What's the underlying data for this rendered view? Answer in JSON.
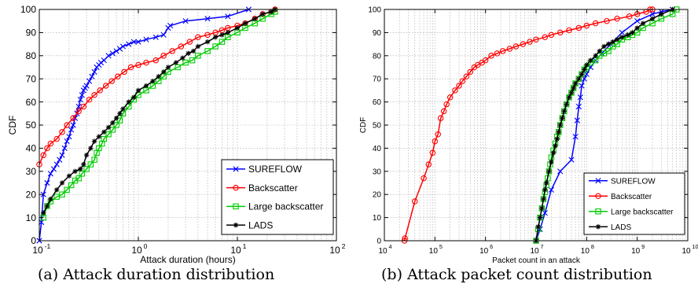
{
  "captions": {
    "a": "(a) Attack duration distribution",
    "b": "(b) Attack packet count distribution"
  },
  "chart_data": [
    {
      "type": "line",
      "xscale": "log",
      "xlim": [
        0.1,
        100
      ],
      "ylim": [
        0,
        100
      ],
      "xlabel": "Attack duration (hours)",
      "ylabel": "CDF",
      "grid": true,
      "legend_position": "bottom-right",
      "x_ticks": [
        {
          "value": 0.1,
          "base": "10",
          "exp": "-1"
        },
        {
          "value": 1,
          "base": "10",
          "exp": "0"
        },
        {
          "value": 10,
          "base": "10",
          "exp": "1"
        },
        {
          "value": 100,
          "base": "10",
          "exp": "2"
        }
      ],
      "y_ticks": [
        "0",
        "10",
        "20",
        "30",
        "40",
        "50",
        "60",
        "70",
        "80",
        "90",
        "100"
      ],
      "series": [
        {
          "name": "SUREFLOW",
          "color": "#0000ff",
          "marker": "x",
          "x": [
            0.1,
            0.105,
            0.11,
            0.12,
            0.13,
            0.14,
            0.15,
            0.16,
            0.17,
            0.18,
            0.19,
            0.2,
            0.21,
            0.22,
            0.23,
            0.24,
            0.25,
            0.26,
            0.27,
            0.28,
            0.29,
            0.3,
            0.32,
            0.34,
            0.36,
            0.38,
            0.4,
            0.42,
            0.45,
            0.5,
            0.55,
            0.6,
            0.65,
            0.7,
            0.8,
            0.9,
            1.0,
            1.2,
            1.5,
            1.8,
            2.0,
            2.1,
            3.0,
            5.0,
            8.0,
            13.0
          ],
          "y": [
            0,
            8,
            20,
            25,
            29,
            31,
            33,
            35,
            37,
            40,
            43,
            45,
            48,
            50,
            53,
            55,
            58,
            61,
            63,
            65,
            66,
            67,
            69,
            71,
            73,
            75,
            76,
            77,
            78,
            80,
            81,
            82,
            83,
            84,
            85,
            86,
            86,
            87,
            88,
            89,
            92,
            93,
            95,
            96,
            97,
            100
          ]
        },
        {
          "name": "Backscatter",
          "color": "#ff0000",
          "marker": "o",
          "x": [
            0.1,
            0.11,
            0.12,
            0.13,
            0.15,
            0.17,
            0.19,
            0.22,
            0.25,
            0.28,
            0.32,
            0.36,
            0.41,
            0.47,
            0.54,
            0.62,
            0.72,
            0.84,
            1.0,
            1.2,
            1.5,
            1.8,
            2.2,
            2.7,
            3.3,
            4.0,
            5.0,
            6.0,
            7.0,
            8.0,
            10.0,
            12.0,
            15.0,
            18.0,
            22.0,
            24.0
          ],
          "y": [
            33,
            37,
            40,
            42,
            44,
            47,
            50,
            53,
            56,
            58,
            61,
            63,
            65,
            67,
            69,
            71,
            73,
            75,
            76,
            77,
            78,
            80,
            82,
            84,
            86,
            88,
            89,
            90,
            91,
            92,
            93,
            94,
            96,
            98,
            99,
            100
          ]
        },
        {
          "name": "Large backscatter",
          "color": "#00cc00",
          "marker": "s",
          "x": [
            0.11,
            0.12,
            0.13,
            0.15,
            0.17,
            0.19,
            0.21,
            0.23,
            0.25,
            0.27,
            0.3,
            0.33,
            0.36,
            0.38,
            0.4,
            0.43,
            0.45,
            0.5,
            0.55,
            0.6,
            0.65,
            0.7,
            0.8,
            0.9,
            1.0,
            1.2,
            1.4,
            1.6,
            1.8,
            2.0,
            2.5,
            3.0,
            3.5,
            4.0,
            5.0,
            6.0,
            7.0,
            8.0,
            10.0,
            12.0,
            15.0,
            18.0,
            22.0,
            24.0
          ],
          "y": [
            10,
            15,
            17,
            19,
            20,
            22,
            24,
            26,
            27,
            29,
            31,
            33,
            35,
            38,
            40,
            42,
            44,
            46,
            48,
            50,
            52,
            55,
            58,
            61,
            63,
            65,
            67,
            69,
            71,
            73,
            75,
            77,
            78,
            80,
            82,
            84,
            86,
            88,
            90,
            92,
            94,
            96,
            98,
            99
          ]
        },
        {
          "name": "LADS",
          "color": "#000000",
          "marker": "*",
          "x": [
            0.11,
            0.12,
            0.13,
            0.15,
            0.17,
            0.2,
            0.23,
            0.26,
            0.28,
            0.3,
            0.33,
            0.36,
            0.4,
            0.45,
            0.5,
            0.55,
            0.6,
            0.65,
            0.7,
            0.8,
            0.9,
            1.0,
            1.2,
            1.4,
            1.6,
            1.8,
            2.0,
            2.4,
            2.8,
            3.2,
            3.6,
            4.0,
            5.0,
            6.0,
            7.0,
            8.0,
            10.0,
            12.0,
            15.0,
            18.0,
            22.0,
            24.0
          ],
          "y": [
            12,
            15,
            18,
            22,
            25,
            28,
            30,
            31,
            33,
            37,
            40,
            43,
            45,
            47,
            49,
            51,
            53,
            55,
            57,
            60,
            62,
            65,
            67,
            69,
            71,
            73,
            75,
            77,
            79,
            81,
            82,
            84,
            86,
            88,
            89,
            90,
            92,
            94,
            96,
            98,
            99,
            100
          ]
        }
      ]
    },
    {
      "type": "line",
      "xscale": "log",
      "xlim": [
        10000,
        10000000000
      ],
      "ylim": [
        0,
        100
      ],
      "xlabel": "Packet count in an attack",
      "ylabel": "CDF",
      "grid": true,
      "legend_position": "bottom-right",
      "x_ticks": [
        {
          "value": 10000,
          "base": "10",
          "exp": "4"
        },
        {
          "value": 100000,
          "base": "10",
          "exp": "5"
        },
        {
          "value": 1000000,
          "base": "10",
          "exp": "6"
        },
        {
          "value": 10000000,
          "base": "10",
          "exp": "7"
        },
        {
          "value": 100000000,
          "base": "10",
          "exp": "8"
        },
        {
          "value": 1000000000,
          "base": "10",
          "exp": "9"
        },
        {
          "value": 10000000000,
          "base": "10",
          "exp": "10"
        }
      ],
      "y_ticks": [
        "0",
        "10",
        "20",
        "30",
        "40",
        "50",
        "60",
        "70",
        "80",
        "90",
        "100"
      ],
      "series": [
        {
          "name": "SUREFLOW",
          "color": "#0000ff",
          "marker": "x",
          "x": [
            10000000,
            12000000,
            15000000,
            20000000,
            30000000,
            50000000,
            60000000,
            65000000,
            70000000,
            75000000,
            80000000,
            90000000,
            100000000,
            120000000,
            150000000,
            200000000,
            300000000,
            500000000,
            1000000000,
            2000000000,
            3000000000,
            5000000000
          ],
          "y": [
            0,
            5,
            12,
            22,
            30,
            35,
            45,
            52,
            58,
            62,
            67,
            70,
            72,
            75,
            78,
            81,
            85,
            90,
            95,
            98,
            99,
            100
          ]
        },
        {
          "name": "Backscatter",
          "color": "#ff0000",
          "marker": "o",
          "x": [
            25000,
            25500,
            40000,
            60000,
            75000,
            90000,
            100000,
            115000,
            130000,
            150000,
            170000,
            200000,
            250000,
            300000,
            350000,
            420000,
            500000,
            600000,
            700000,
            850000,
            1000000,
            1300000,
            1700000,
            2200000,
            3000000,
            4000000,
            5500000,
            7500000,
            10000000,
            15000000,
            20000000,
            30000000,
            45000000,
            70000000,
            100000000,
            150000000,
            250000000,
            400000000,
            700000000,
            1000000000,
            1500000000,
            1800000000,
            2000000000
          ],
          "y": [
            0,
            1,
            17,
            27,
            33,
            38,
            43,
            46,
            53,
            56,
            59,
            62,
            65,
            67,
            69,
            71,
            73,
            75,
            76,
            77,
            78,
            80,
            81,
            82,
            83,
            84,
            85,
            86,
            87,
            88,
            89,
            90,
            91,
            92,
            93,
            94,
            95,
            96,
            97,
            98,
            99,
            100,
            100
          ]
        },
        {
          "name": "Large backscatter",
          "color": "#00cc00",
          "marker": "s",
          "x": [
            10000000,
            11000000,
            12000000,
            13000000,
            14000000,
            15000000,
            16000000,
            17000000,
            18000000,
            19000000,
            20000000,
            22000000,
            24000000,
            26000000,
            28000000,
            30000000,
            33000000,
            36000000,
            40000000,
            45000000,
            50000000,
            55000000,
            60000000,
            70000000,
            80000000,
            90000000,
            100000000,
            120000000,
            150000000,
            180000000,
            220000000,
            270000000,
            330000000,
            400000000,
            500000000,
            650000000,
            800000000,
            1000000000,
            1300000000,
            2000000000,
            3000000000,
            5000000000,
            6000000000
          ],
          "y": [
            0,
            5,
            10,
            14,
            18,
            21,
            24,
            27,
            30,
            33,
            36,
            39,
            42,
            45,
            47,
            50,
            53,
            56,
            59,
            62,
            64,
            66,
            68,
            70,
            72,
            74,
            75,
            77,
            78,
            80,
            81,
            82,
            84,
            85,
            87,
            88,
            89,
            90,
            92,
            94,
            96,
            98,
            100
          ]
        },
        {
          "name": "LADS",
          "color": "#000000",
          "marker": "*",
          "x": [
            10000000,
            11000000,
            12000000,
            13000000,
            14000000,
            15000000,
            16000000,
            18000000,
            20000000,
            22000000,
            24000000,
            26000000,
            28000000,
            30000000,
            33000000,
            36000000,
            40000000,
            45000000,
            50000000,
            55000000,
            60000000,
            70000000,
            80000000,
            90000000,
            100000000,
            120000000,
            150000000,
            180000000,
            220000000,
            270000000,
            330000000,
            400000000,
            500000000,
            650000000,
            800000000,
            1000000000,
            1300000000,
            2000000000,
            3000000000,
            5000000000
          ],
          "y": [
            0,
            6,
            10,
            14,
            18,
            22,
            25,
            30,
            34,
            38,
            41,
            44,
            47,
            50,
            53,
            56,
            59,
            62,
            64,
            66,
            68,
            70,
            72,
            74,
            76,
            78,
            80,
            82,
            84,
            85,
            86,
            87,
            88,
            89,
            90,
            92,
            94,
            96,
            98,
            100
          ]
        }
      ]
    }
  ]
}
